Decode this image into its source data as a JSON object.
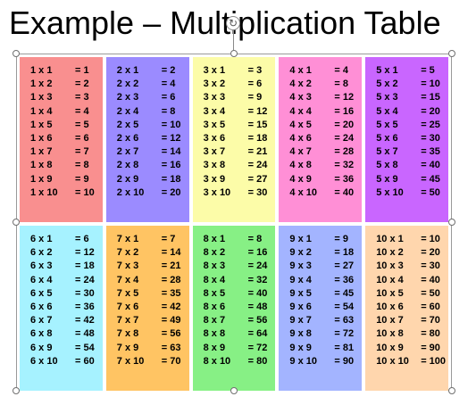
{
  "slide": {
    "title": "Example – Multiplication Table"
  },
  "table": {
    "cell_colors": [
      "#f98f8f",
      "#9b8bff",
      "#fcfca8",
      "#ff8fd6",
      "#c966ff",
      "#a6f2ff",
      "#ffc463",
      "#87f085",
      "#a3b4ff",
      "#ffd6ad"
    ],
    "blocks": [
      {
        "rows": [
          [
            "1 x 1",
            "= 1"
          ],
          [
            "1 x 2",
            "= 2"
          ],
          [
            "1 x 3",
            "= 3"
          ],
          [
            "1 x 4",
            "= 4"
          ],
          [
            "1 x 5",
            "= 5"
          ],
          [
            "1 x 6",
            "= 6"
          ],
          [
            "1 x 7",
            "= 7"
          ],
          [
            "1 x 8",
            "= 8"
          ],
          [
            "1 x 9",
            "= 9"
          ],
          [
            "1 x 10",
            "= 10"
          ]
        ]
      },
      {
        "rows": [
          [
            "2 x 1",
            "= 2"
          ],
          [
            "2 x 2",
            "= 4"
          ],
          [
            "2 x 3",
            "= 6"
          ],
          [
            "2 x 4",
            "= 8"
          ],
          [
            "2 x 5",
            "= 10"
          ],
          [
            "2 x 6",
            "= 12"
          ],
          [
            "2 x 7",
            "= 14"
          ],
          [
            "2 x 8",
            "= 16"
          ],
          [
            "2 x 9",
            "= 18"
          ],
          [
            "2 x 10",
            "= 20"
          ]
        ]
      },
      {
        "rows": [
          [
            "3 x 1",
            "= 3"
          ],
          [
            "3 x 2",
            "= 6"
          ],
          [
            "3 x 3",
            "= 9"
          ],
          [
            "3 x 4",
            "= 12"
          ],
          [
            "3 x 5",
            "= 15"
          ],
          [
            "3 x 6",
            "= 18"
          ],
          [
            "3 x 7",
            "= 21"
          ],
          [
            "3 x 8",
            "= 24"
          ],
          [
            "3 x 9",
            "= 27"
          ],
          [
            "3 x 10",
            "= 30"
          ]
        ]
      },
      {
        "rows": [
          [
            "4 x 1",
            "= 4"
          ],
          [
            "4 x 2",
            "= 8"
          ],
          [
            "4 x 3",
            "= 12"
          ],
          [
            "4 x 4",
            "= 16"
          ],
          [
            "4 x 5",
            "= 20"
          ],
          [
            "4 x 6",
            "= 24"
          ],
          [
            "4 x 7",
            "= 28"
          ],
          [
            "4 x 8",
            "= 32"
          ],
          [
            "4 x 9",
            "= 36"
          ],
          [
            "4 x 10",
            "= 40"
          ]
        ]
      },
      {
        "rows": [
          [
            "5 x 1",
            "= 5"
          ],
          [
            "5 x 2",
            "= 10"
          ],
          [
            "5 x 3",
            "= 15"
          ],
          [
            "5 x 4",
            "= 20"
          ],
          [
            "5 x 5",
            "= 25"
          ],
          [
            "5 x 6",
            "= 30"
          ],
          [
            "5 x 7",
            "= 35"
          ],
          [
            "5 x 8",
            "= 40"
          ],
          [
            "5 x 9",
            "= 45"
          ],
          [
            "5 x 10",
            "= 50"
          ]
        ]
      },
      {
        "rows": [
          [
            "6 x 1",
            "= 6"
          ],
          [
            "6 x 2",
            "= 12"
          ],
          [
            "6 x 3",
            "= 18"
          ],
          [
            "6 x 4",
            "= 24"
          ],
          [
            "6 x 5",
            "= 30"
          ],
          [
            "6 x 6",
            "= 36"
          ],
          [
            "6 x 7",
            "= 42"
          ],
          [
            "6 x 8",
            "= 48"
          ],
          [
            "6 x 9",
            "= 54"
          ],
          [
            "6 x 10",
            "= 60"
          ]
        ]
      },
      {
        "rows": [
          [
            "7 x 1",
            "= 7"
          ],
          [
            "7 x 2",
            "= 14"
          ],
          [
            "7 x 3",
            "= 21"
          ],
          [
            "7 x 4",
            "= 28"
          ],
          [
            "7 x 5",
            "= 35"
          ],
          [
            "7 x 6",
            "= 42"
          ],
          [
            "7 x 7",
            "= 49"
          ],
          [
            "7 x 8",
            "= 56"
          ],
          [
            "7 x 9",
            "= 63"
          ],
          [
            "7 x 10",
            "= 70"
          ]
        ]
      },
      {
        "rows": [
          [
            "8 x 1",
            "= 8"
          ],
          [
            "8 x 2",
            "= 16"
          ],
          [
            "8 x 3",
            "= 24"
          ],
          [
            "8 x 4",
            "= 32"
          ],
          [
            "8 x 5",
            "= 40"
          ],
          [
            "8 x 6",
            "= 48"
          ],
          [
            "8 x 7",
            "= 56"
          ],
          [
            "8 x 8",
            "= 64"
          ],
          [
            "8 x 9",
            "= 72"
          ],
          [
            "8 x 10",
            "= 80"
          ]
        ]
      },
      {
        "rows": [
          [
            "9 x 1",
            "= 9"
          ],
          [
            "9 x 2",
            "= 18"
          ],
          [
            "9 x 3",
            "= 27"
          ],
          [
            "9 x 4",
            "= 36"
          ],
          [
            "9 x 5",
            "= 45"
          ],
          [
            "9 x 6",
            "= 54"
          ],
          [
            "9 x 7",
            "= 63"
          ],
          [
            "9 x 8",
            "= 72"
          ],
          [
            "9 x 9",
            "= 81"
          ],
          [
            "9 x 10",
            "= 90"
          ]
        ]
      },
      {
        "rows": [
          [
            "10 x 1",
            "= 10"
          ],
          [
            "10 x 2",
            "= 20"
          ],
          [
            "10 x 3",
            "= 30"
          ],
          [
            "10 x 4",
            "= 40"
          ],
          [
            "10 x 5",
            "= 50"
          ],
          [
            "10 x 6",
            "= 60"
          ],
          [
            "10 x 7",
            "= 70"
          ],
          [
            "10 x 8",
            "= 80"
          ],
          [
            "10 x 9",
            "= 90"
          ],
          [
            "10 x 10",
            "= 100"
          ]
        ]
      }
    ]
  },
  "selection": {
    "rotate_icon": "rotate-handle-icon",
    "resize_icon": "resize-handle-icon"
  }
}
